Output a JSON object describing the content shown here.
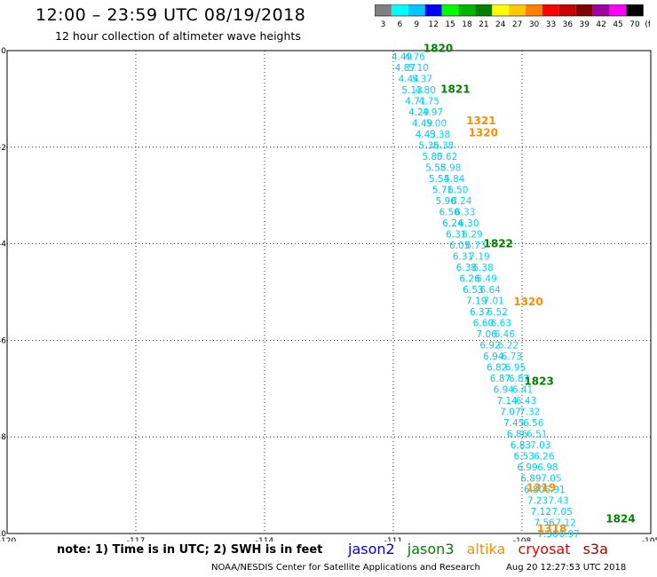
{
  "header": {
    "title": "12:00 – 23:59 UTC 08/19/2018",
    "subtitle": "12 hour collection of altimeter wave heights"
  },
  "color_scale": {
    "bins": [
      {
        "label": "3",
        "color": "#808080"
      },
      {
        "label": "6",
        "color": "#00ffff"
      },
      {
        "label": "9",
        "color": "#00c8ff"
      },
      {
        "label": "12",
        "color": "#0000ff"
      },
      {
        "label": "15",
        "color": "#00ff00"
      },
      {
        "label": "18",
        "color": "#00b400"
      },
      {
        "label": "21",
        "color": "#008000"
      },
      {
        "label": "24",
        "color": "#ffff00"
      },
      {
        "label": "27",
        "color": "#ffc800"
      },
      {
        "label": "30",
        "color": "#ff8000"
      },
      {
        "label": "33",
        "color": "#ff0000"
      },
      {
        "label": "36",
        "color": "#c80000"
      },
      {
        "label": "39",
        "color": "#800000"
      },
      {
        "label": "42",
        "color": "#a000a0"
      },
      {
        "label": "45",
        "color": "#ff00ff"
      },
      {
        "label": "70",
        "color": "#000000"
      }
    ],
    "unit": "(ft)"
  },
  "chart_data": {
    "type": "scatter",
    "xlim": [
      -120,
      -105
    ],
    "ylim": [
      -10,
      0
    ],
    "x_ticks": [
      "-120",
      "-117",
      "-114",
      "-111",
      "-108",
      "-105"
    ],
    "y_ticks": [
      "0",
      "-2",
      "-4",
      "-6",
      "-8",
      "-10"
    ],
    "grid": true,
    "track_a": {
      "color": "#00c8e6",
      "start": [
        -110.8,
        -0.12
      ],
      "end": [
        -107.4,
        -10.0
      ],
      "values": [
        "4.49",
        "4.87",
        "4.44",
        "5.13",
        "4.71",
        "4.29",
        "4.49",
        "4.43",
        "5.36",
        "5.80",
        "5.58",
        "5.54",
        "5.71",
        "5.90",
        "6.50",
        "6.24",
        "6.31",
        "6.05",
        "6.31",
        "6.38",
        "6.26",
        "6.53",
        "7.19",
        "6.37",
        "6.60",
        "7.06",
        "6.92",
        "6.94",
        "6.82",
        "6.87",
        "6.94",
        "7.14",
        "7.07",
        "7.45",
        "6.86",
        "6.83",
        "6.53",
        "6.99",
        "6.89",
        "6.80",
        "7.23",
        "7.12",
        "7.56",
        "7.36"
      ]
    },
    "track_b": {
      "color": "#00d4ff",
      "start": [
        -110.5,
        -0.12
      ],
      "end": [
        -106.9,
        -10.0
      ],
      "values": [
        "4.76",
        "5.10",
        "5.37",
        "4.80",
        "4.75",
        "4.97",
        "5.00",
        "5.38",
        "5.38",
        "5.62",
        "5.98",
        "5.84",
        "6.50",
        "6.24",
        "6.33",
        "6.30",
        "6.29",
        "6.73",
        "7.19",
        "6.38",
        "6.49",
        "6.64",
        "7.01",
        "6.52",
        "6.63",
        "6.46",
        "6.22",
        "6.73",
        "6.95",
        "6.87",
        "6.41",
        "6.43",
        "7.32",
        "6.56",
        "6.51",
        "7.03",
        "6.26",
        "6.98",
        "7.05",
        "6.91",
        "7.43",
        "7.05",
        "7.12",
        "6.97"
      ]
    },
    "pass_labels": [
      {
        "text": "1820",
        "x": -110.3,
        "y": 0.05,
        "color": "#008000"
      },
      {
        "text": "1821",
        "x": -109.9,
        "y": -0.8,
        "color": "#008000"
      },
      {
        "text": "1321",
        "x": -109.3,
        "y": -1.45,
        "color": "#ff8c00"
      },
      {
        "text": "1320",
        "x": -109.25,
        "y": -1.7,
        "color": "#ff8c00"
      },
      {
        "text": "1822",
        "x": -108.9,
        "y": -4.0,
        "color": "#008000"
      },
      {
        "text": "1320",
        "x": -108.2,
        "y": -5.2,
        "color": "#ff8c00"
      },
      {
        "text": "1823",
        "x": -107.95,
        "y": -6.85,
        "color": "#008000"
      },
      {
        "text": "1319",
        "x": -107.9,
        "y": -9.05,
        "color": "#ff8c00"
      },
      {
        "text": "1824",
        "x": -106.05,
        "y": -9.7,
        "color": "#008000"
      },
      {
        "text": "1318",
        "x": -107.65,
        "y": -9.9,
        "color": "#ff8c00"
      }
    ]
  },
  "footer": {
    "note": "note:  1) Time is in UTC;  2) SWH is in feet",
    "missions": [
      {
        "name": "jason2",
        "color": "#0000e0"
      },
      {
        "name": "jason3",
        "color": "#008000"
      },
      {
        "name": "altika",
        "color": "#ff8c00"
      },
      {
        "name": "cryosat",
        "color": "#e00000"
      },
      {
        "name": "s3a",
        "color": "#a00000"
      }
    ],
    "credit": "NOAA/NESDIS Center for Satellite Applications and Research",
    "timestamp": "Aug 20 12:27:53 UTC 2018"
  }
}
